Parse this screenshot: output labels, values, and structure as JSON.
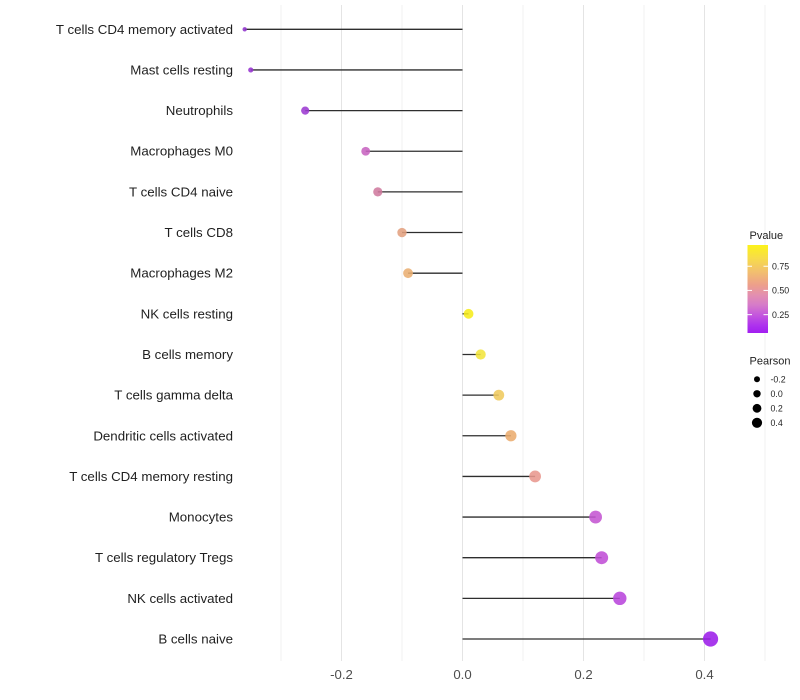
{
  "chart_data": {
    "type": "lollipop",
    "title": "",
    "xlabel": "",
    "ylabel": "",
    "x_axis": {
      "tick_labels": [
        "-0.2",
        "0.0",
        "0.2",
        "0.4"
      ],
      "tick_values": [
        -0.2,
        0.0,
        0.2,
        0.4
      ],
      "minor_values": [
        -0.3,
        -0.1,
        0.1,
        0.3,
        0.5
      ],
      "range": [
        -0.368,
        0.546
      ]
    },
    "rows": [
      {
        "label": "T cells CD4 memory activated",
        "pearson": -0.36,
        "pvalue": 0.12,
        "color": "#8F33CC",
        "radius_px": 2.2
      },
      {
        "label": "Mast cells resting",
        "pearson": -0.35,
        "pvalue": 0.13,
        "color": "#9633D0",
        "radius_px": 2.6
      },
      {
        "label": "Neutrophils",
        "pearson": -0.26,
        "pvalue": 0.15,
        "color": "#9C3AD2",
        "radius_px": 4.1
      },
      {
        "label": "Macrophages M0",
        "pearson": -0.16,
        "pvalue": 0.35,
        "color": "#C763C0",
        "radius_px": 4.4
      },
      {
        "label": "T cells CD4 naive",
        "pearson": -0.14,
        "pvalue": 0.45,
        "color": "#CF7A9E",
        "radius_px": 4.6
      },
      {
        "label": "T cells CD8",
        "pearson": -0.1,
        "pvalue": 0.6,
        "color": "#E2A07F",
        "radius_px": 4.7
      },
      {
        "label": "Macrophages M2",
        "pearson": -0.09,
        "pvalue": 0.65,
        "color": "#E9AE72",
        "radius_px": 4.9
      },
      {
        "label": "NK cells resting",
        "pearson": 0.01,
        "pvalue": 0.95,
        "color": "#F6EC1B",
        "radius_px": 4.9
      },
      {
        "label": "B cells memory",
        "pearson": 0.03,
        "pvalue": 0.9,
        "color": "#F3E53C",
        "radius_px": 5.1
      },
      {
        "label": "T cells gamma delta",
        "pearson": 0.06,
        "pvalue": 0.8,
        "color": "#EFC95D",
        "radius_px": 5.4
      },
      {
        "label": "Dendritic cells activated",
        "pearson": 0.08,
        "pvalue": 0.65,
        "color": "#EAAC6E",
        "radius_px": 5.6
      },
      {
        "label": "T cells CD4 memory resting",
        "pearson": 0.12,
        "pvalue": 0.5,
        "color": "#E8978E",
        "radius_px": 5.9
      },
      {
        "label": "Monocytes",
        "pearson": 0.22,
        "pvalue": 0.3,
        "color": "#C455D2",
        "radius_px": 6.4
      },
      {
        "label": "T cells regulatory  Tregs",
        "pearson": 0.23,
        "pvalue": 0.28,
        "color": "#C04FD6",
        "radius_px": 6.5
      },
      {
        "label": "NK cells activated",
        "pearson": 0.26,
        "pvalue": 0.25,
        "color": "#B845DC",
        "radius_px": 6.7
      },
      {
        "label": "B cells naive",
        "pearson": 0.41,
        "pvalue": 0.05,
        "color": "#9C1EE9",
        "radius_px": 7.6
      }
    ],
    "legends": {
      "pvalue": {
        "title": "Pvalue",
        "tick_labels": [
          "0.75",
          "0.50",
          "0.25"
        ],
        "tick_values": [
          0.75,
          0.5,
          0.25
        ],
        "bar_range": [
          0.97,
          0.06
        ],
        "gradient_top_to_bottom": [
          {
            "offset": 0.0,
            "color": "#FCF21A"
          },
          {
            "offset": 0.15,
            "color": "#F7DC4A"
          },
          {
            "offset": 0.3,
            "color": "#F2C06E"
          },
          {
            "offset": 0.45,
            "color": "#EDA08A"
          },
          {
            "offset": 0.57,
            "color": "#E38FB0"
          },
          {
            "offset": 0.68,
            "color": "#D67BC9"
          },
          {
            "offset": 0.8,
            "color": "#C355DE"
          },
          {
            "offset": 0.92,
            "color": "#AD30EE"
          },
          {
            "offset": 1.0,
            "color": "#A21EF0"
          }
        ]
      },
      "pearson": {
        "title": "Pearson",
        "entries": [
          {
            "label": "-0.2",
            "value": -0.2,
            "radius_px": 3.0
          },
          {
            "label": "0.0",
            "value": 0.0,
            "radius_px": 3.7
          },
          {
            "label": "0.2",
            "value": 0.2,
            "radius_px": 4.4
          },
          {
            "label": "0.4",
            "value": 0.4,
            "radius_px": 5.1
          }
        ],
        "dot_color": "#000000"
      }
    },
    "colors": {
      "stem": "#2E2E2E",
      "grid_major": "#E4E4E4",
      "grid_minor": "#F1F1F1",
      "axis_text_x": "#4D4D4D",
      "axis_text_y": "#1F1F1F",
      "legend_text": "#1F1F1F",
      "background": "#FFFFFF"
    },
    "layout_hints": {
      "grid": "vertical-only",
      "legend_position": "right",
      "zero_baseline": true
    }
  }
}
